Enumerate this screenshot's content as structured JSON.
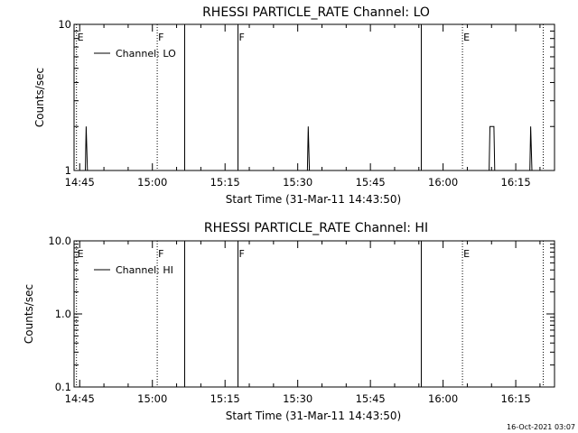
{
  "chart_data": [
    {
      "type": "line",
      "title": "RHESSI PARTICLE_RATE Channel: LO",
      "xlabel": "Start Time (31-Mar-11 14:43:50)",
      "ylabel": "Counts/sec",
      "y_scale": "log",
      "xlim": [
        "14:43:50",
        "16:23:00"
      ],
      "ylim": [
        1,
        10
      ],
      "x_ticks": [
        "14:45",
        "15:00",
        "15:15",
        "15:30",
        "15:45",
        "16:00",
        "16:15"
      ],
      "y_ticks": [
        {
          "value": 1,
          "label": "1"
        },
        {
          "value": 10,
          "label": "10"
        }
      ],
      "grid": false,
      "legend": {
        "position": "top-left",
        "entries": [
          "Channel: LO"
        ]
      },
      "series": [
        {
          "name": "Channel: LO",
          "points": [
            [
              "14:46:10",
              1
            ],
            [
              "14:46:20",
              2
            ],
            [
              "14:46:35",
              1
            ],
            [
              "15:32:00",
              1
            ],
            [
              "15:32:10",
              2
            ],
            [
              "15:32:25",
              1
            ],
            [
              "16:09:30",
              1
            ],
            [
              "16:09:40",
              2
            ],
            [
              "16:10:30",
              2
            ],
            [
              "16:10:40",
              1
            ],
            [
              "16:17:55",
              1
            ],
            [
              "16:18:05",
              2
            ],
            [
              "16:18:20",
              1
            ]
          ]
        }
      ],
      "markers": [
        {
          "time": "14:44:20",
          "label": "E",
          "style": "dotted"
        },
        {
          "time": "15:01:00",
          "label": "F",
          "style": "dotted"
        },
        {
          "time": "15:06:40",
          "label": "",
          "style": "solid"
        },
        {
          "time": "15:17:40",
          "label": "F",
          "style": "solid"
        },
        {
          "time": "15:55:30",
          "label": "",
          "style": "solid"
        },
        {
          "time": "16:04:00",
          "label": "E",
          "style": "dotted"
        },
        {
          "time": "16:20:40",
          "label": "",
          "style": "dotted"
        }
      ]
    },
    {
      "type": "line",
      "title": "RHESSI PARTICLE_RATE Channel: HI",
      "xlabel": "Start Time (31-Mar-11 14:43:50)",
      "ylabel": "Counts/sec",
      "y_scale": "log",
      "xlim": [
        "14:43:50",
        "16:23:00"
      ],
      "ylim": [
        0.1,
        10
      ],
      "x_ticks": [
        "14:45",
        "15:00",
        "15:15",
        "15:30",
        "15:45",
        "16:00",
        "16:15"
      ],
      "y_ticks": [
        {
          "value": 0.1,
          "label": "0.1"
        },
        {
          "value": 1,
          "label": "1.0"
        },
        {
          "value": 10,
          "label": "10.0"
        }
      ],
      "grid": false,
      "legend": {
        "position": "top-left",
        "entries": [
          "Channel: HI"
        ]
      },
      "series": [
        {
          "name": "Channel: HI",
          "points": []
        }
      ],
      "markers": [
        {
          "time": "14:44:20",
          "label": "E",
          "style": "dotted"
        },
        {
          "time": "15:01:00",
          "label": "F",
          "style": "dotted"
        },
        {
          "time": "15:06:40",
          "label": "",
          "style": "solid"
        },
        {
          "time": "15:17:40",
          "label": "F",
          "style": "solid"
        },
        {
          "time": "15:55:30",
          "label": "",
          "style": "solid"
        },
        {
          "time": "16:04:00",
          "label": "E",
          "style": "dotted"
        },
        {
          "time": "16:20:40",
          "label": "",
          "style": "dotted"
        }
      ]
    }
  ],
  "footer": {
    "timestamp": "16-Oct-2021 03:07"
  }
}
